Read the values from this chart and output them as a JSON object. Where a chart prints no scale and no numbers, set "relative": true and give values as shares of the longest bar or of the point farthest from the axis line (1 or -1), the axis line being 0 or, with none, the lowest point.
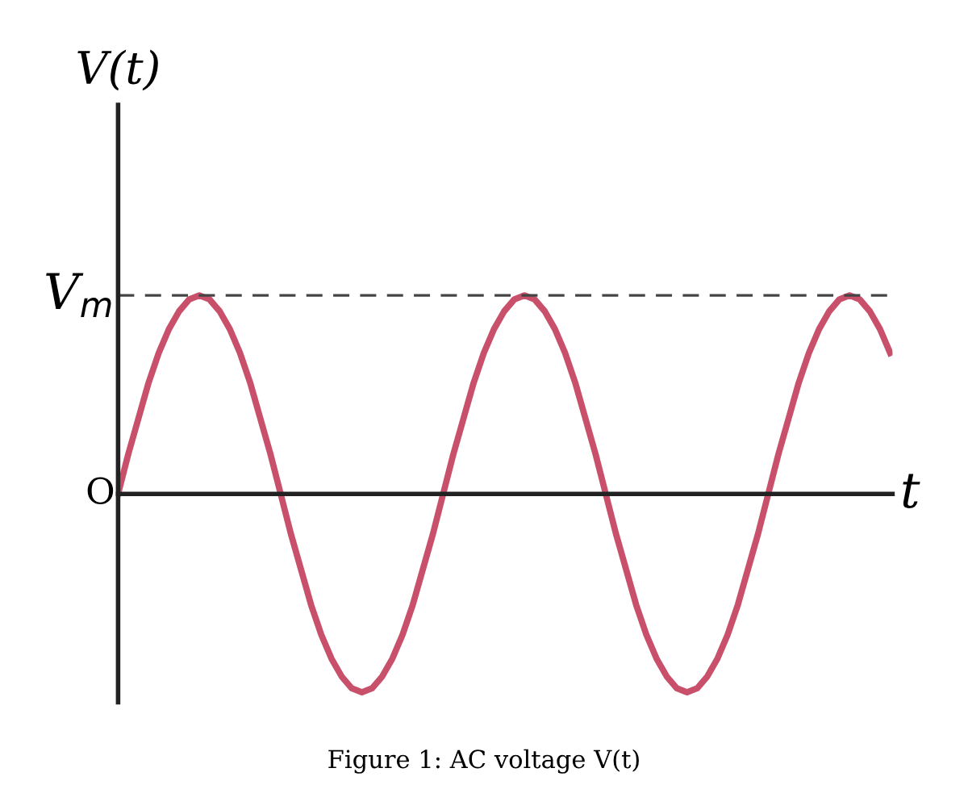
{
  "chart_data": {
    "type": "line",
    "relative": true,
    "title": "Figure 1: AC voltage V(t)",
    "xlabel": "t",
    "ylabel": "V(t)",
    "categories": [
      null,
      null,
      null,
      null,
      null,
      null,
      null,
      null,
      null,
      null,
      null,
      null,
      null,
      null,
      null,
      null,
      null,
      null,
      null,
      null,
      null,
      null,
      null,
      null,
      null,
      null,
      null,
      null,
      null,
      null,
      null,
      null,
      null,
      null,
      null,
      null,
      null,
      null,
      null,
      null,
      null,
      null,
      null,
      null,
      null,
      null,
      null,
      null,
      null,
      null,
      null,
      null,
      null,
      null,
      null,
      null,
      null,
      null,
      null,
      null,
      null,
      null,
      null,
      null,
      null,
      null,
      null,
      null,
      null,
      null,
      null,
      null,
      null,
      null,
      null,
      null,
      null
    ],
    "series": [
      {
        "color": "#c8506a",
        "values": [
          0,
          0.2,
          0.38,
          0.56,
          0.71,
          0.83,
          0.92,
          0.98,
          1,
          0.98,
          0.92,
          0.83,
          0.71,
          0.56,
          0.38,
          0.2,
          0,
          -0.2,
          -0.38,
          -0.56,
          -0.71,
          -0.83,
          -0.92,
          -0.98,
          -1,
          -0.98,
          -0.92,
          -0.83,
          -0.71,
          -0.56,
          -0.38,
          -0.2,
          0,
          0.2,
          0.38,
          0.56,
          0.71,
          0.83,
          0.92,
          0.98,
          1,
          0.98,
          0.92,
          0.83,
          0.71,
          0.56,
          0.38,
          0.2,
          0,
          -0.2,
          -0.38,
          -0.56,
          -0.71,
          -0.83,
          -0.92,
          -0.98,
          -1,
          -0.98,
          -0.92,
          -0.83,
          -0.71,
          -0.56,
          -0.38,
          -0.2,
          0,
          0.2,
          0.38,
          0.56,
          0.71,
          0.83,
          0.92,
          0.98,
          1,
          0.98,
          0.92,
          0.83,
          0.71
        ]
      }
    ],
    "ref_lines": [
      {
        "axis": "y",
        "value": 1,
        "label": "V$_{m}$",
        "color": "#444444",
        "line_style": "dashed"
      }
    ],
    "annotations": [
      "O"
    ],
    "marker": "none",
    "line_style": "solid",
    "legend": false
  }
}
